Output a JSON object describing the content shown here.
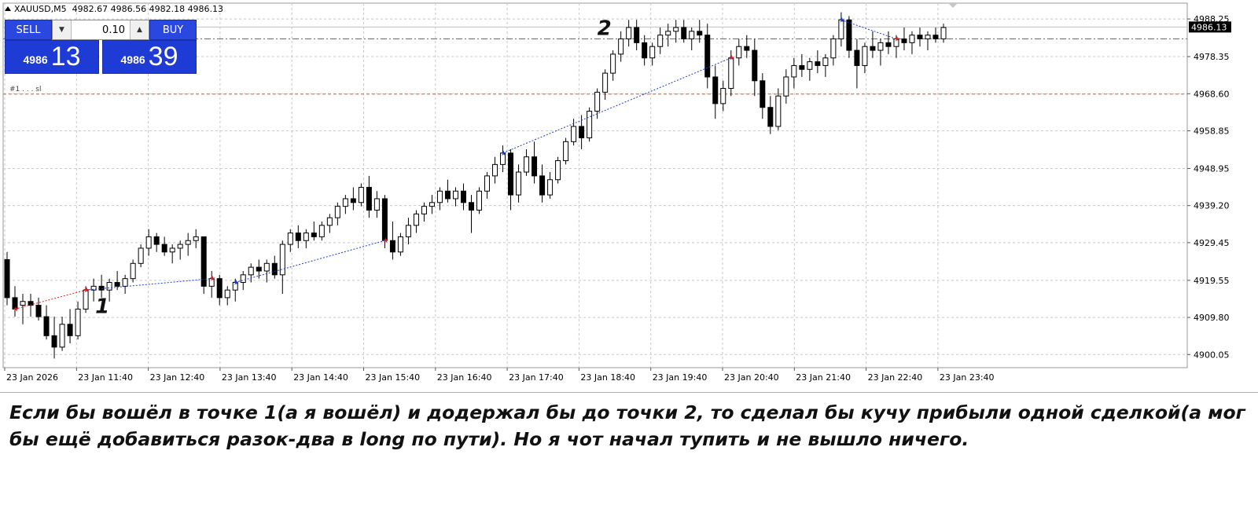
{
  "header": {
    "symbol": "XAUUSD,M5",
    "ohlc": "4982.67 4986.56 4982.18 4986.13"
  },
  "trade_panel": {
    "sell_label": "SELL",
    "buy_label": "BUY",
    "lot_value": "0.10",
    "sell_price_small": "4986",
    "sell_price_big": "13",
    "buy_price_small": "4986",
    "buy_price_big": "39"
  },
  "order_label": "#1 . . . sl",
  "annotations": {
    "point1": "1",
    "point2": "2"
  },
  "current_price_label": "4986.13",
  "caption": "Если бы вошёл в точке 1(а я вошёл) и додержал бы до точки 2, то сделал бы кучу прибыли одной сделкой(а мог бы ещё добавиться разок-два в long по пути). Но я чот начал тупить и не вышло ничего.",
  "colors": {
    "bull": "#ffffff",
    "bear": "#000000",
    "grid": "#c8c8c8",
    "green_line": "#2a9a2a",
    "red_line": "#f07840",
    "blue_trade": "#1f3bd6",
    "red_trade": "#e02020",
    "current_price_bg": "#000000"
  },
  "chart_data": {
    "type": "candlestick",
    "symbol": "XAUUSD",
    "timeframe": "M5",
    "y_ticks": [
      4988.25,
      4978.35,
      4968.6,
      4958.85,
      4948.95,
      4939.2,
      4929.45,
      4919.55,
      4909.8,
      4900.05
    ],
    "y_tick_labels": [
      "4988.25",
      "4978.35",
      "4968.60",
      "4958.85",
      "4948.95",
      "4939.20",
      "4929.45",
      "4919.55",
      "4909.80",
      "4900.05"
    ],
    "x_tick_labels": [
      "23 Jan 2026",
      "23 Jan 11:40",
      "23 Jan 12:40",
      "23 Jan 13:40",
      "23 Jan 14:40",
      "23 Jan 15:40",
      "23 Jan 16:40",
      "23 Jan 17:40",
      "23 Jan 18:40",
      "23 Jan 19:40",
      "23 Jan 20:40",
      "23 Jan 21:40",
      "23 Jan 22:40",
      "23 Jan 23:40"
    ],
    "ylim": [
      4896.6,
      4992.4
    ],
    "current_price": 4986.13,
    "green_level": 4983.0,
    "red_level": 4968.5,
    "candles": [
      [
        4925,
        4927,
        4913,
        4915
      ],
      [
        4915,
        4918,
        4910,
        4912
      ],
      [
        4913,
        4916,
        4908,
        4914
      ],
      [
        4914,
        4916,
        4910,
        4913
      ],
      [
        4913,
        4915,
        4909,
        4910
      ],
      [
        4910,
        4913,
        4904,
        4905
      ],
      [
        4905,
        4910,
        4899,
        4902
      ],
      [
        4902,
        4910,
        4901,
        4908
      ],
      [
        4908,
        4912,
        4903,
        4905
      ],
      [
        4905,
        4914,
        4904,
        4912
      ],
      [
        4912,
        4918,
        4911,
        4917
      ],
      [
        4917,
        4920,
        4914,
        4918
      ],
      [
        4918,
        4921,
        4915,
        4917
      ],
      [
        4917,
        4920,
        4914,
        4919
      ],
      [
        4919,
        4922,
        4917,
        4918
      ],
      [
        4918,
        4921,
        4916,
        4920
      ],
      [
        4920,
        4925,
        4919,
        4924
      ],
      [
        4924,
        4929,
        4923,
        4928
      ],
      [
        4928,
        4933,
        4926,
        4931
      ],
      [
        4931,
        4932,
        4927,
        4929
      ],
      [
        4929,
        4931,
        4926,
        4927
      ],
      [
        4927,
        4929,
        4924,
        4928
      ],
      [
        4928,
        4930,
        4925,
        4929
      ],
      [
        4929,
        4932,
        4926,
        4930
      ],
      [
        4930,
        4933,
        4928,
        4931
      ],
      [
        4931,
        4931,
        4916,
        4918
      ],
      [
        4918,
        4922,
        4915,
        4920
      ],
      [
        4920,
        4921,
        4913,
        4915
      ],
      [
        4915,
        4918,
        4913,
        4917
      ],
      [
        4917,
        4920,
        4914,
        4919
      ],
      [
        4919,
        4922,
        4917,
        4921
      ],
      [
        4921,
        4924,
        4919,
        4923
      ],
      [
        4923,
        4925,
        4920,
        4922
      ],
      [
        4922,
        4925,
        4919,
        4924
      ],
      [
        4924,
        4926,
        4920,
        4921
      ],
      [
        4921,
        4930,
        4916,
        4929
      ],
      [
        4929,
        4933,
        4927,
        4932
      ],
      [
        4932,
        4934,
        4928,
        4930
      ],
      [
        4930,
        4933,
        4928,
        4932
      ],
      [
        4932,
        4935,
        4930,
        4931
      ],
      [
        4931,
        4935,
        4930,
        4934
      ],
      [
        4934,
        4937,
        4932,
        4936
      ],
      [
        4936,
        4940,
        4934,
        4939
      ],
      [
        4939,
        4942,
        4937,
        4941
      ],
      [
        4941,
        4944,
        4938,
        4940
      ],
      [
        4940,
        4945,
        4939,
        4944
      ],
      [
        4944,
        4947,
        4936,
        4938
      ],
      [
        4938,
        4943,
        4936,
        4941
      ],
      [
        4941,
        4942,
        4928,
        4930
      ],
      [
        4930,
        4935,
        4925,
        4927
      ],
      [
        4927,
        4932,
        4926,
        4931
      ],
      [
        4931,
        4936,
        4929,
        4934
      ],
      [
        4934,
        4938,
        4932,
        4937
      ],
      [
        4937,
        4940,
        4935,
        4939
      ],
      [
        4939,
        4942,
        4937,
        4940
      ],
      [
        4940,
        4944,
        4938,
        4943
      ],
      [
        4943,
        4946,
        4940,
        4941
      ],
      [
        4941,
        4944,
        4939,
        4943
      ],
      [
        4943,
        4945,
        4938,
        4940
      ],
      [
        4940,
        4942,
        4932,
        4938
      ],
      [
        4938,
        4944,
        4937,
        4943
      ],
      [
        4943,
        4948,
        4941,
        4947
      ],
      [
        4947,
        4952,
        4945,
        4950
      ],
      [
        4950,
        4955,
        4948,
        4953
      ],
      [
        4953,
        4954,
        4938,
        4942
      ],
      [
        4942,
        4950,
        4940,
        4948
      ],
      [
        4948,
        4954,
        4947,
        4952
      ],
      [
        4952,
        4956,
        4945,
        4947
      ],
      [
        4947,
        4950,
        4940,
        4942
      ],
      [
        4942,
        4948,
        4941,
        4946
      ],
      [
        4946,
        4952,
        4945,
        4951
      ],
      [
        4951,
        4957,
        4950,
        4956
      ],
      [
        4956,
        4962,
        4955,
        4960
      ],
      [
        4960,
        4963,
        4954,
        4957
      ],
      [
        4957,
        4965,
        4956,
        4964
      ],
      [
        4964,
        4970,
        4962,
        4969
      ],
      [
        4969,
        4975,
        4967,
        4974
      ],
      [
        4974,
        4980,
        4972,
        4979
      ],
      [
        4979,
        4985,
        4977,
        4983
      ],
      [
        4983,
        4988,
        4981,
        4986
      ],
      [
        4986,
        4988,
        4980,
        4982
      ],
      [
        4982,
        4984,
        4976,
        4978
      ],
      [
        4978,
        4982,
        4976,
        4981
      ],
      [
        4981,
        4986,
        4979,
        4984
      ],
      [
        4984,
        4987,
        4981,
        4985
      ],
      [
        4985,
        4988,
        4982,
        4986
      ],
      [
        4986,
        4988,
        4982,
        4983
      ],
      [
        4983,
        4986,
        4980,
        4985
      ],
      [
        4985,
        4988,
        4982,
        4984
      ],
      [
        4984,
        4987,
        4970,
        4973
      ],
      [
        4973,
        4976,
        4962,
        4966
      ],
      [
        4966,
        4972,
        4964,
        4970
      ],
      [
        4970,
        4980,
        4968,
        4978
      ],
      [
        4978,
        4983,
        4976,
        4981
      ],
      [
        4981,
        4984,
        4978,
        4980
      ],
      [
        4980,
        4983,
        4968,
        4972
      ],
      [
        4972,
        4974,
        4962,
        4965
      ],
      [
        4965,
        4968,
        4958,
        4960
      ],
      [
        4960,
        4970,
        4959,
        4968
      ],
      [
        4968,
        4975,
        4966,
        4973
      ],
      [
        4973,
        4978,
        4970,
        4976
      ],
      [
        4976,
        4979,
        4973,
        4975
      ],
      [
        4975,
        4978,
        4972,
        4977
      ],
      [
        4977,
        4980,
        4974,
        4976
      ],
      [
        4976,
        4979,
        4973,
        4978
      ],
      [
        4978,
        4984,
        4976,
        4983
      ],
      [
        4983,
        4990,
        4981,
        4988
      ],
      [
        4988,
        4989,
        4978,
        4980
      ],
      [
        4980,
        4983,
        4970,
        4976
      ],
      [
        4976,
        4982,
        4974,
        4981
      ],
      [
        4981,
        4985,
        4978,
        4980
      ],
      [
        4980,
        4983,
        4976,
        4982
      ],
      [
        4982,
        4985,
        4979,
        4981
      ],
      [
        4981,
        4984,
        4978,
        4983
      ],
      [
        4983,
        4986,
        4980,
        4982
      ],
      [
        4982,
        4985,
        4979,
        4984
      ],
      [
        4984,
        4986,
        4981,
        4983
      ],
      [
        4983,
        4985,
        4980,
        4984
      ],
      [
        4984,
        4986,
        4982,
        4983
      ],
      [
        4983,
        4987,
        4982,
        4986
      ]
    ]
  }
}
